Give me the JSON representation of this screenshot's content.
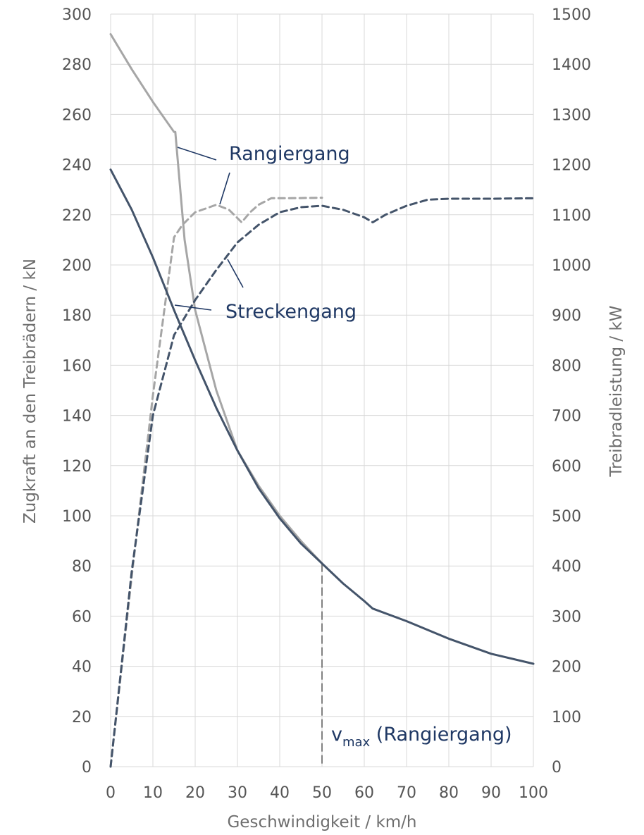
{
  "chart_data": {
    "type": "line",
    "xlabel": "Geschwindigkeit / km/h",
    "ylabel": "Zugkraft an den Treibrädern / kN",
    "y2label": "Treibradleistung / kW",
    "xlim": [
      0,
      100
    ],
    "ylim": [
      0,
      300
    ],
    "y2lim": [
      0,
      1500
    ],
    "x_ticks": [
      "0",
      "10",
      "20",
      "30",
      "40",
      "50",
      "60",
      "70",
      "80",
      "90",
      "100"
    ],
    "y_ticks": [
      "0",
      "20",
      "40",
      "60",
      "80",
      "100",
      "120",
      "140",
      "160",
      "180",
      "200",
      "220",
      "240",
      "260",
      "280",
      "300"
    ],
    "y2_ticks": [
      "0",
      "100",
      "200",
      "300",
      "400",
      "500",
      "600",
      "700",
      "800",
      "900",
      "1000",
      "1100",
      "1200",
      "1300",
      "1400",
      "1500"
    ],
    "grid": true,
    "colors": {
      "rangier": "#a6a6a6",
      "strecken": "#44546a",
      "vline": "#808080",
      "annotation": "#1f3864"
    },
    "series": [
      {
        "axis": "left",
        "style": "solid",
        "color": "#a6a6a6",
        "x": [
          0,
          5,
          10,
          15,
          15.3,
          17.5,
          20,
          25,
          30,
          35,
          40,
          45,
          50
        ],
        "y": [
          292,
          278,
          265,
          253,
          253,
          210,
          182,
          150,
          126,
          112,
          100,
          90,
          81
        ]
      },
      {
        "axis": "right",
        "style": "dashed",
        "color": "#a6a6a6",
        "x": [
          0,
          5,
          10,
          15,
          17,
          20,
          25,
          28,
          31,
          33,
          35,
          38,
          42,
          50
        ],
        "y2": [
          0,
          380,
          740,
          1055,
          1080,
          1105,
          1120,
          1110,
          1085,
          1105,
          1120,
          1133,
          1133,
          1134
        ]
      },
      {
        "axis": "left",
        "style": "solid",
        "color": "#44546a",
        "x": [
          0,
          5,
          10,
          15,
          20,
          25,
          30,
          35,
          40,
          45,
          50,
          55,
          60,
          62,
          70,
          80,
          90,
          100
        ],
        "y": [
          238,
          222,
          203,
          182,
          162,
          143,
          126,
          111,
          99,
          89,
          81,
          73,
          66,
          63,
          58,
          51,
          45,
          41
        ]
      },
      {
        "axis": "right",
        "style": "dashed",
        "color": "#44546a",
        "x": [
          0,
          5,
          10,
          15,
          20,
          25,
          30,
          35,
          40,
          45,
          50,
          55,
          60,
          62,
          65,
          70,
          75,
          80,
          90,
          100
        ],
        "y2": [
          0,
          390,
          700,
          860,
          930,
          990,
          1045,
          1080,
          1105,
          1115,
          1118,
          1110,
          1095,
          1085,
          1100,
          1118,
          1130,
          1132,
          1132,
          1133
        ]
      }
    ],
    "vline": {
      "x": 50,
      "y": 81
    },
    "annotations": {
      "rangiergang": "Rangiergang",
      "streckengang": "Streckengang",
      "vmax_v": "v",
      "vmax_sub": "max",
      "vmax_rest": " (Rangiergang)"
    }
  }
}
